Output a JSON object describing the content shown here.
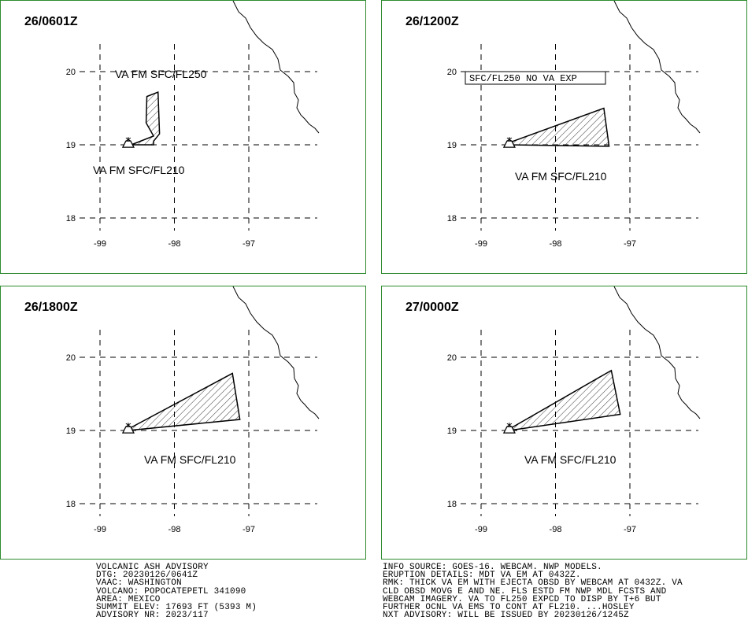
{
  "panels": [
    {
      "time": "26/0601Z",
      "labels": [
        "VA FM SFC/FL250",
        "VA FM SFC/FL210"
      ],
      "boxed_label": "",
      "polygons": [
        [
          [
            -98.37,
            19.66
          ],
          [
            -98.22,
            19.72
          ],
          [
            -98.2,
            19.15
          ],
          [
            -98.28,
            19.05
          ],
          [
            -98.28,
            19.0
          ],
          [
            -98.58,
            19.0
          ],
          [
            -98.28,
            19.12
          ],
          [
            -98.38,
            19.3
          ]
        ]
      ]
    },
    {
      "time": "26/1200Z",
      "labels": [
        "VA FM SFC/FL210"
      ],
      "boxed_label": "SFC/FL250 NO VA EXP",
      "polygons": [
        [
          [
            -98.62,
            19.03
          ],
          [
            -97.35,
            19.5
          ],
          [
            -97.28,
            18.98
          ],
          [
            -98.62,
            19.0
          ]
        ]
      ]
    },
    {
      "time": "26/1800Z",
      "labels": [
        "VA FM SFC/FL210"
      ],
      "boxed_label": "",
      "polygons": [
        [
          [
            -98.62,
            19.02
          ],
          [
            -97.22,
            19.78
          ],
          [
            -97.12,
            19.15
          ],
          [
            -98.62,
            19.0
          ]
        ]
      ]
    },
    {
      "time": "27/0000Z",
      "labels": [
        "VA FM SFC/FL210"
      ],
      "boxed_label": "",
      "polygons": [
        [
          [
            -98.62,
            19.02
          ],
          [
            -97.25,
            19.82
          ],
          [
            -97.13,
            19.22
          ],
          [
            -98.62,
            19.0
          ]
        ]
      ]
    }
  ],
  "axes": {
    "lon_ticks": [
      "-99",
      "-98",
      "-97"
    ],
    "lat_ticks": [
      "20",
      "19",
      "18"
    ]
  },
  "footer_left": [
    "VOLCANIC ASH ADVISORY",
    "DTG: 20230126/0641Z",
    "VAAC: WASHINGTON",
    "VOLCANO: POPOCATEPETL 341090",
    "AREA: MEXICO",
    "SUMMIT ELEV: 17693 FT (5393 M)",
    "ADVISORY NR: 2023/117"
  ],
  "footer_right": [
    "INFO SOURCE: GOES-16. WEBCAM. NWP MODELS.",
    "ERUPTION DETAILS: MDT VA EM AT 0432Z.",
    "RMK: THICK VA EM WITH EJECTA OBSD BY WEBCAM AT 0432Z. VA",
    "CLD OBSD MOVG E AND NE. FLS ESTD FM NWP MDL FCSTS AND",
    "WEBCAM IMAGERY. VA TO FL250 EXPCD TO DISP BY T+6 BUT",
    "FURTHER OCNL VA EMS TO CONT AT FL210. ...HOSLEY",
    "NXT ADVISORY: WILL BE ISSUED BY 20230126/1245Z"
  ],
  "colors": {
    "panel_border": "#2e8b2e",
    "lines": "#000000"
  },
  "icons": [
    "volcano-icon"
  ]
}
